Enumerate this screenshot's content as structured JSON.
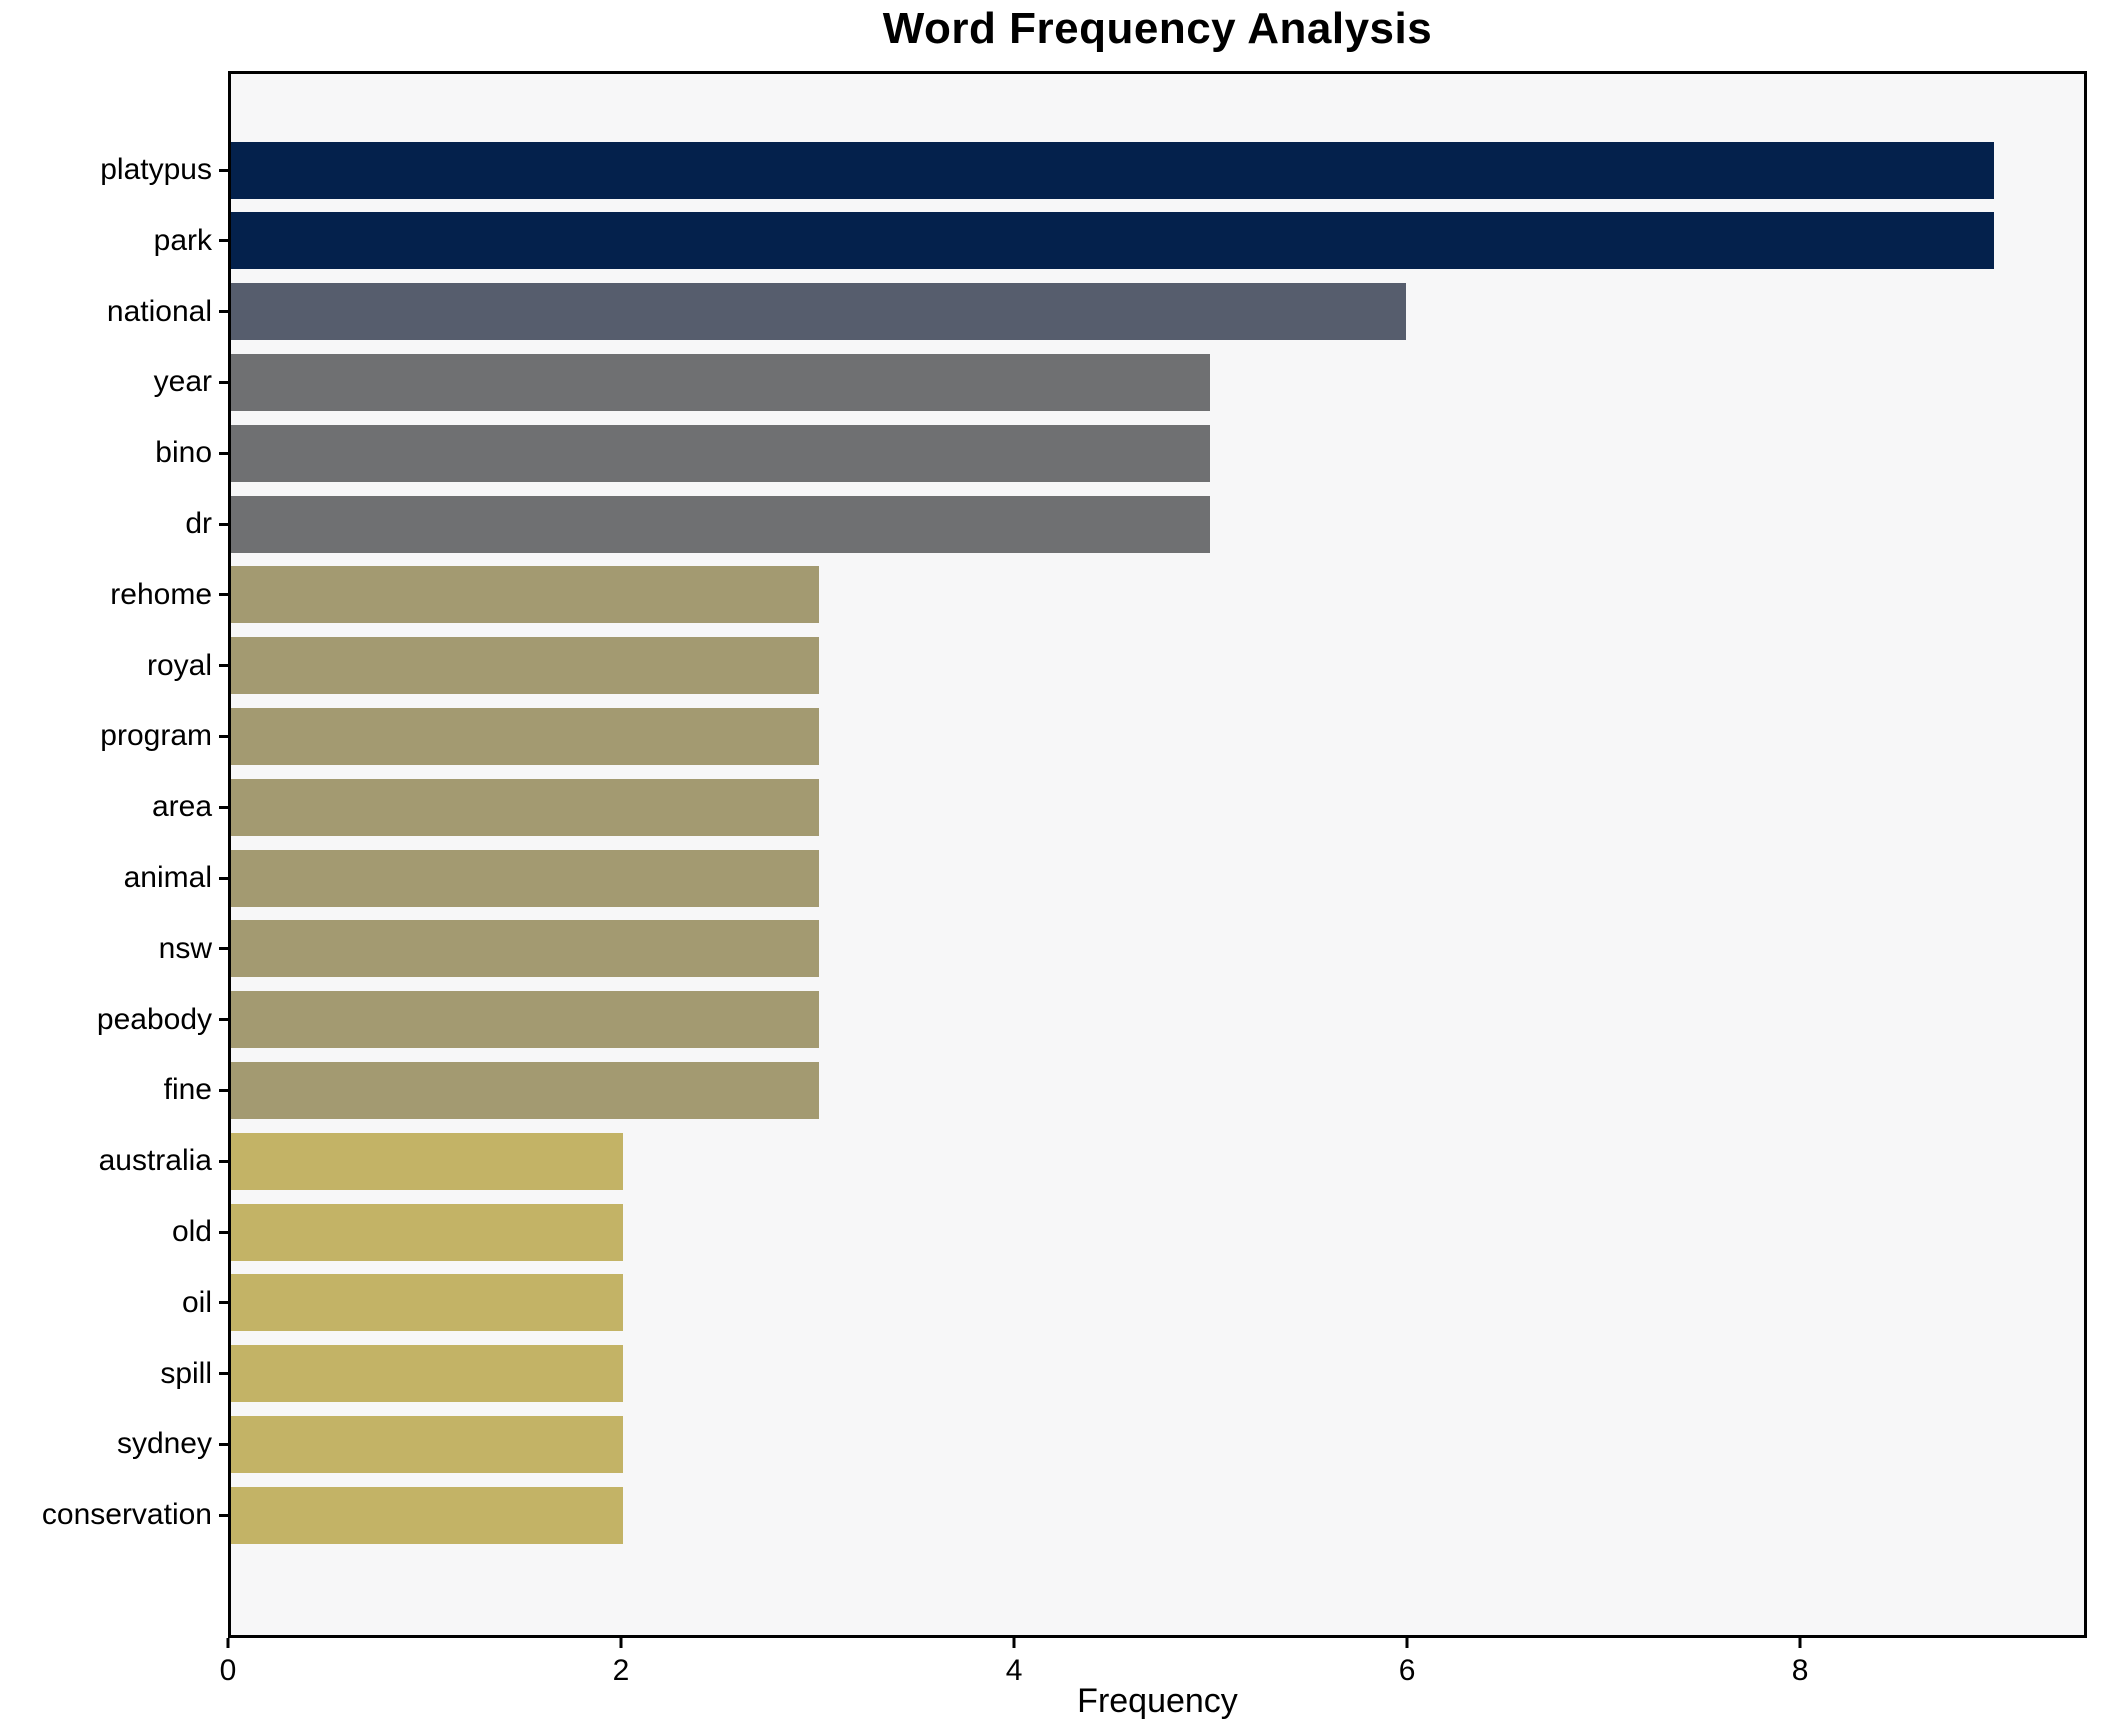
{
  "chart_data": {
    "type": "bar",
    "orientation": "horizontal",
    "title": "Word Frequency Analysis",
    "xlabel": "Frequency",
    "ylabel": "",
    "categories": [
      "platypus",
      "park",
      "national",
      "year",
      "bino",
      "dr",
      "rehome",
      "royal",
      "program",
      "area",
      "animal",
      "nsw",
      "peabody",
      "fine",
      "australia",
      "old",
      "oil",
      "spill",
      "sydney",
      "conservation"
    ],
    "values": [
      9,
      9,
      6,
      5,
      5,
      5,
      3,
      3,
      3,
      3,
      3,
      3,
      3,
      3,
      2,
      2,
      2,
      2,
      2,
      2
    ],
    "bar_colors": [
      "#04214c",
      "#04214c",
      "#565d6d",
      "#6f7072",
      "#6f7072",
      "#6f7072",
      "#a39a71",
      "#a39a71",
      "#a39a71",
      "#a39a71",
      "#a39a71",
      "#a39a71",
      "#a39a71",
      "#a39a71",
      "#c3b366",
      "#c3b366",
      "#c3b366",
      "#c3b366",
      "#c3b366",
      "#c3b366"
    ],
    "xlim": [
      0,
      9.46
    ],
    "xticks": [
      0,
      2,
      4,
      6,
      8
    ],
    "grid": false,
    "legend": false,
    "plot_bg": "#f7f7f8",
    "spine_color": "#000000"
  }
}
